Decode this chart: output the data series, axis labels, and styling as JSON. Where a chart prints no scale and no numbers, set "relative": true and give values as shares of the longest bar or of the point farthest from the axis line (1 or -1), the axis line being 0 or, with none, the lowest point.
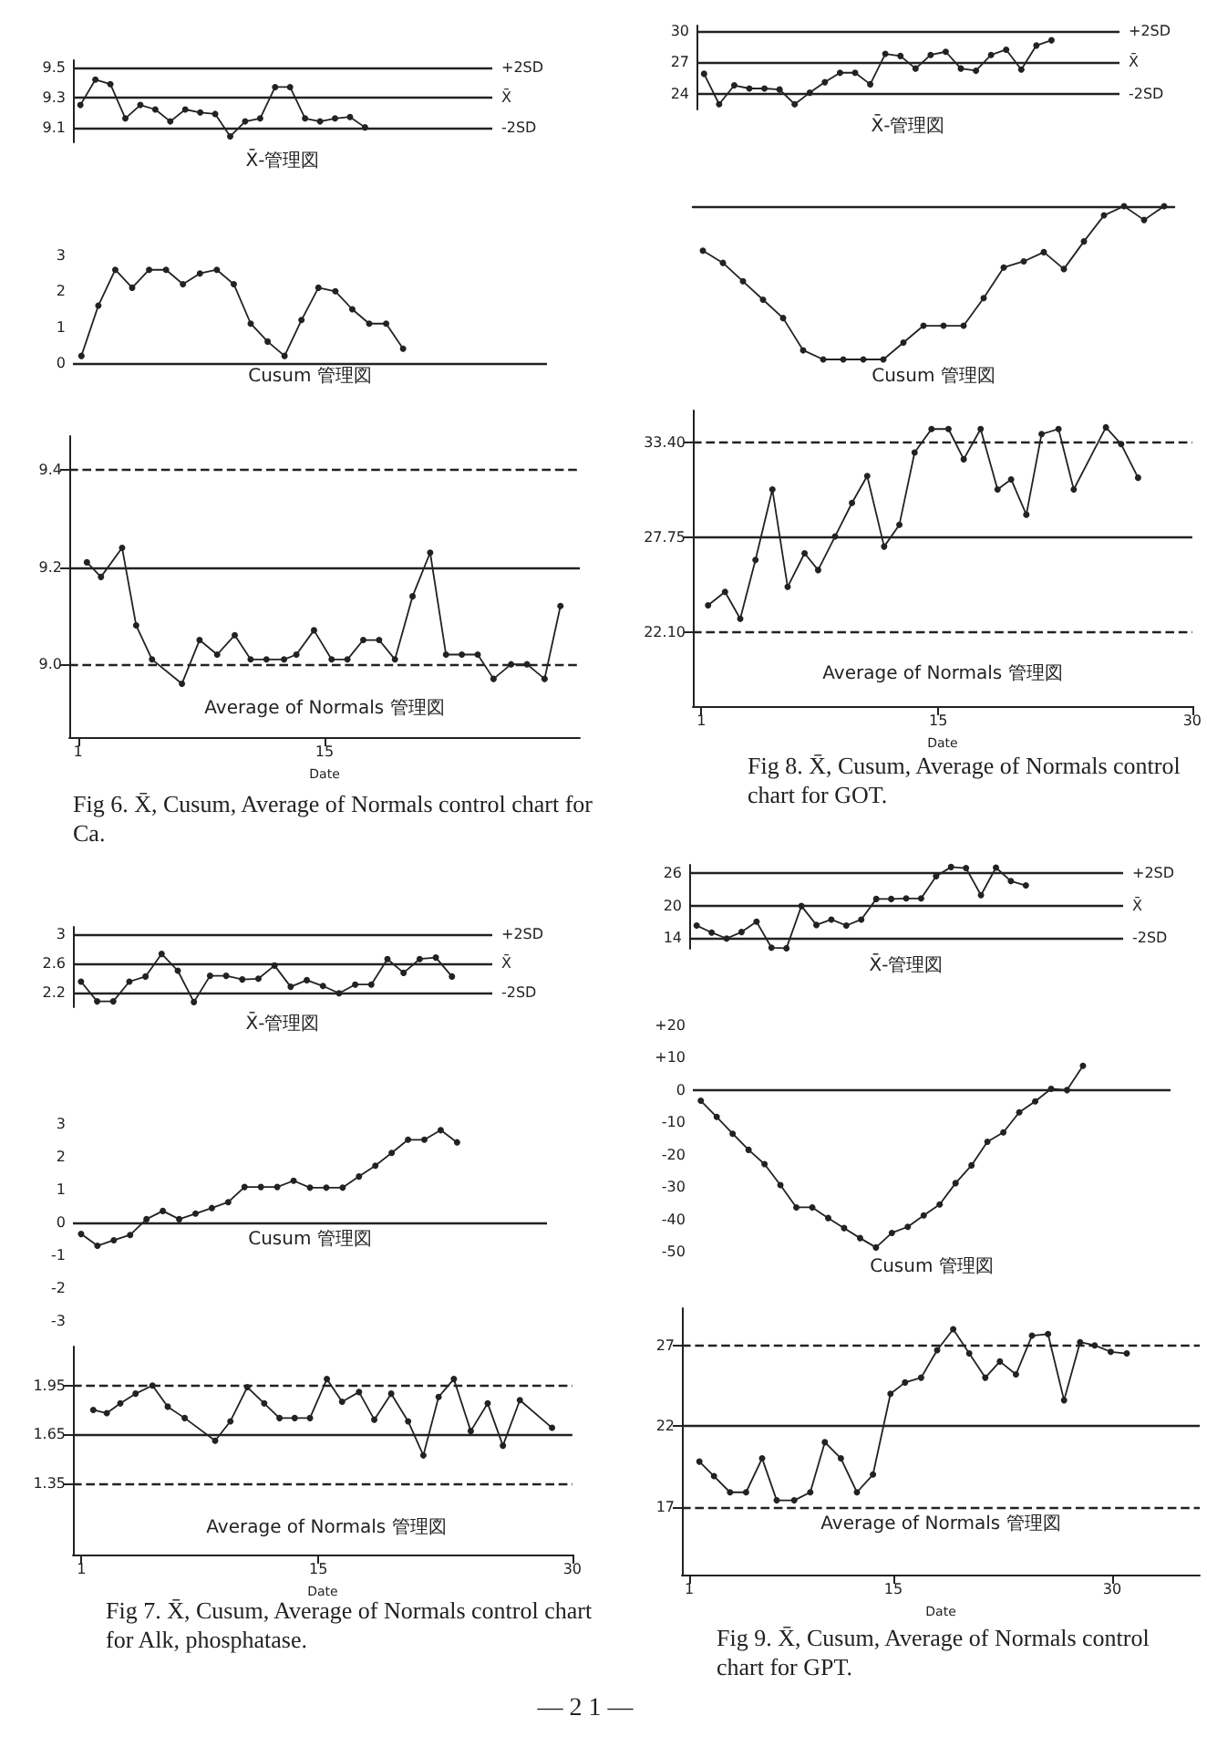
{
  "chart_data": [
    {
      "type": "line",
      "color": "#222222",
      "marker": "circle",
      "line_style": "solid",
      "tick_labels": "y",
      "grid": false,
      "categories": [
        null,
        null,
        null,
        null,
        null,
        null,
        null,
        null,
        null,
        null,
        null,
        null,
        null,
        null,
        null,
        null,
        null,
        null,
        null,
        null,
        null,
        null,
        null,
        null,
        null,
        null,
        null,
        null
      ],
      "values": [
        9.25,
        9.42,
        9.39,
        9.16,
        9.25,
        9.22,
        9.14,
        9.22,
        9.2,
        9.19,
        9.04,
        9.14,
        9.16,
        9.37,
        9.37,
        9.16,
        9.14,
        9.16,
        9.17,
        9.1,
        null,
        null,
        null,
        null,
        null,
        null,
        null,
        null
      ],
      "ylim": [
        9.0,
        9.55
      ],
      "yticks": [
        9.1,
        9.3,
        9.5
      ],
      "ref_lines": [
        {
          "axis": "y",
          "value": 9.5,
          "label": "+2SD"
        },
        {
          "axis": "y",
          "value": 9.3,
          "label": "X̄"
        },
        {
          "axis": "y",
          "value": 9.1,
          "label": "-2SD"
        }
      ],
      "annotations": [
        "X̄-管理図"
      ]
    },
    {
      "type": "line",
      "color": "#222222",
      "marker": "circle",
      "line_style": "solid",
      "tick_labels": "y",
      "grid": false,
      "categories": [
        null,
        null,
        null,
        null,
        null,
        null,
        null,
        null,
        null,
        null,
        null,
        null,
        null,
        null,
        null,
        null,
        null,
        null,
        null,
        null,
        null,
        null,
        null,
        null,
        null,
        null,
        null,
        null
      ],
      "values": [
        0.2,
        1.6,
        2.6,
        2.1,
        2.6,
        2.6,
        2.2,
        2.5,
        2.6,
        2.2,
        1.1,
        0.6,
        0.2,
        1.2,
        2.1,
        2.0,
        1.5,
        1.1,
        1.1,
        0.4,
        null,
        null,
        null,
        null,
        null,
        null,
        null,
        null
      ],
      "ylim": [
        0,
        3
      ],
      "yticks": [
        0,
        1,
        2,
        3
      ],
      "ref_lines": [
        {
          "axis": "y",
          "value": 0
        }
      ],
      "annotations": [
        "Cusum 管理図"
      ]
    },
    {
      "type": "line",
      "color": "#222222",
      "marker": "circle",
      "line_style": "solid",
      "grid": false,
      "xlabel": "Date",
      "x": [
        1.5,
        2.3,
        3.5,
        4.3,
        5.2,
        6.9,
        7.9,
        8.9,
        9.9,
        10.8,
        11.7,
        12.7,
        13.4,
        14.4,
        15.4,
        16.3,
        17.2,
        18.1,
        19.0,
        20.0,
        21.0,
        21.9,
        22.8,
        23.7,
        24.6,
        25.6,
        26.5,
        27.5,
        28.4
      ],
      "values": [
        9.21,
        9.18,
        9.24,
        9.08,
        9.01,
        8.96,
        9.05,
        9.02,
        9.06,
        9.01,
        9.01,
        9.01,
        9.02,
        9.07,
        9.01,
        9.01,
        9.05,
        9.05,
        9.01,
        9.14,
        9.23,
        9.02,
        9.02,
        9.02,
        8.97,
        9.0,
        9.0,
        8.97,
        9.12
      ],
      "xlim": [
        0.5,
        29.5
      ],
      "xticks": [
        1,
        15
      ],
      "ylim": [
        8.85,
        9.47
      ],
      "yticks": [
        {
          "value": 9,
          "label": "9.0"
        },
        9.2,
        9.4
      ],
      "ref_lines": [
        {
          "axis": "y",
          "value": 9.4,
          "line_style": "dashed"
        },
        {
          "axis": "y",
          "value": 9.2,
          "line_style": "solid"
        },
        {
          "axis": "y",
          "value": 9,
          "line_style": "dashed"
        }
      ],
      "annotations": [
        "Average of Normals 管理図",
        "Fig 6.  X̄, Cusum, Average of Normals control chart for Ca."
      ]
    },
    {
      "type": "line",
      "color": "#222222",
      "marker": "circle",
      "line_style": "solid",
      "tick_labels": "y",
      "grid": false,
      "categories": [
        null,
        null,
        null,
        null,
        null,
        null,
        null,
        null,
        null,
        null,
        null,
        null,
        null,
        null,
        null,
        null,
        null,
        null,
        null,
        null,
        null,
        null,
        null,
        null,
        null,
        null,
        null,
        null
      ],
      "values": [
        25.9,
        23.0,
        24.8,
        24.5,
        24.5,
        24.4,
        23.0,
        24.1,
        25.1,
        26.0,
        26.0,
        24.9,
        27.8,
        27.6,
        26.4,
        27.7,
        28.0,
        26.4,
        26.2,
        27.7,
        28.2,
        26.3,
        28.6,
        29.1,
        null,
        null,
        null,
        null
      ],
      "ylim": [
        22.5,
        30.5
      ],
      "yticks": [
        24,
        27,
        30
      ],
      "ref_lines": [
        {
          "axis": "y",
          "value": 30,
          "label": "+2SD"
        },
        {
          "axis": "y",
          "value": 27,
          "label": "X̄"
        },
        {
          "axis": "y",
          "value": 24,
          "label": "-2SD"
        }
      ],
      "annotations": [
        "X̄-管理図"
      ]
    },
    {
      "type": "line",
      "color": "#222222",
      "marker": "circle",
      "line_style": "solid",
      "relative": true,
      "tick_labels": false,
      "grid": false,
      "categories": [
        null,
        null,
        null,
        null,
        null,
        null,
        null,
        null,
        null,
        null,
        null,
        null,
        null,
        null,
        null,
        null,
        null,
        null,
        null,
        null,
        null,
        null,
        null,
        null
      ],
      "values": [
        -0.29,
        -0.37,
        -0.49,
        -0.61,
        -0.73,
        -0.94,
        -1,
        -1,
        -1,
        -1,
        -0.89,
        -0.78,
        -0.78,
        -0.78,
        -0.6,
        -0.4,
        -0.36,
        -0.3,
        -0.41,
        -0.23,
        -0.06,
        0,
        -0.09,
        0
      ],
      "annotations": [
        "Cusum 管理図"
      ]
    },
    {
      "type": "line",
      "color": "#222222",
      "marker": "circle",
      "line_style": "solid",
      "grid": false,
      "xlabel": "Date",
      "x": [
        1.4,
        2.4,
        3.3,
        4.2,
        5.2,
        6.1,
        7.1,
        7.9,
        8.9,
        9.9,
        10.8,
        11.8,
        12.7,
        13.6,
        14.6,
        15.6,
        16.5,
        17.5,
        18.5,
        19.3,
        20.2,
        21.1,
        22.1,
        23.0,
        24.9,
        25.8,
        26.8
      ],
      "values": [
        23.7,
        24.5,
        22.9,
        26.4,
        30.6,
        24.8,
        26.8,
        25.8,
        27.8,
        29.8,
        31.4,
        27.2,
        28.5,
        32.8,
        34.2,
        34.2,
        32.4,
        34.2,
        30.6,
        31.2,
        29.1,
        33.9,
        34.2,
        30.6,
        34.3,
        33.3,
        31.3
      ],
      "xlim": [
        0.5,
        30
      ],
      "xticks": [
        1,
        15,
        30
      ],
      "ylim": [
        17.7,
        35.3
      ],
      "yticks": [
        {
          "value": 22.1,
          "label": "22.10"
        },
        27.75,
        {
          "value": 33.4,
          "label": "33.40"
        }
      ],
      "ref_lines": [
        {
          "axis": "y",
          "value": 33.4,
          "line_style": "dashed"
        },
        {
          "axis": "y",
          "value": 27.75,
          "line_style": "solid"
        },
        {
          "axis": "y",
          "value": 22.1,
          "line_style": "dashed"
        }
      ],
      "annotations": [
        "Average of Normals 管理図",
        "Fig 8.  X̄, Cusum, Average of Normals control chart for GOT."
      ]
    },
    {
      "type": "line",
      "color": "#222222",
      "marker": "circle",
      "line_style": "solid",
      "tick_labels": "y",
      "grid": false,
      "categories": [
        null,
        null,
        null,
        null,
        null,
        null,
        null,
        null,
        null,
        null,
        null,
        null,
        null,
        null,
        null,
        null,
        null,
        null,
        null,
        null,
        null,
        null,
        null,
        null,
        null,
        null
      ],
      "values": [
        2.35,
        2.08,
        2.08,
        2.35,
        2.42,
        2.73,
        2.5,
        2.07,
        2.43,
        2.43,
        2.38,
        2.39,
        2.57,
        2.28,
        2.37,
        2.29,
        2.19,
        2.31,
        2.31,
        2.66,
        2.47,
        2.66,
        2.68,
        2.42,
        null,
        null
      ],
      "ylim": [
        2.0,
        3.1
      ],
      "yticks": [
        2.2,
        2.6,
        3
      ],
      "ref_lines": [
        {
          "axis": "y",
          "value": 3,
          "label": "+2SD"
        },
        {
          "axis": "y",
          "value": 2.6,
          "label": "X̄"
        },
        {
          "axis": "y",
          "value": 2.2,
          "label": "-2SD"
        }
      ],
      "annotations": [
        "X̄-管理図"
      ]
    },
    {
      "type": "line",
      "color": "#222222",
      "marker": "circle",
      "line_style": "solid",
      "tick_labels": "y",
      "grid": false,
      "categories": [
        null,
        null,
        null,
        null,
        null,
        null,
        null,
        null,
        null,
        null,
        null,
        null,
        null,
        null,
        null,
        null,
        null,
        null,
        null,
        null,
        null,
        null,
        null,
        null,
        null,
        null,
        null,
        null,
        null
      ],
      "values": [
        -0.35,
        -0.71,
        -0.54,
        -0.38,
        0.1,
        0.35,
        0.1,
        0.27,
        0.44,
        0.62,
        1.08,
        1.08,
        1.08,
        1.27,
        1.06,
        1.06,
        1.06,
        1.4,
        1.73,
        2.12,
        2.52,
        2.52,
        2.81,
        2.44,
        null,
        null,
        null,
        null,
        null
      ],
      "ylim": [
        -3,
        3
      ],
      "yticks": [
        3,
        2,
        1,
        0,
        -1,
        -2,
        -3
      ],
      "ref_lines": [
        {
          "axis": "y",
          "value": 0
        }
      ],
      "annotations": [
        "Cusum 管理図"
      ]
    },
    {
      "type": "line",
      "color": "#222222",
      "marker": "circle",
      "line_style": "solid",
      "grid": false,
      "xlabel": "Date",
      "x": [
        1.7,
        2.5,
        3.3,
        4.2,
        5.2,
        6.1,
        7.1,
        8.9,
        9.8,
        10.8,
        11.8,
        12.7,
        13.6,
        14.5,
        15.5,
        16.4,
        17.4,
        18.3,
        19.3,
        20.3,
        21.2,
        22.1,
        23.0,
        24.0,
        25.0,
        25.9,
        26.9,
        28.8
      ],
      "values": [
        1.8,
        1.78,
        1.84,
        1.9,
        1.95,
        1.82,
        1.75,
        1.61,
        1.73,
        1.94,
        1.84,
        1.75,
        1.75,
        1.75,
        1.99,
        1.85,
        1.91,
        1.74,
        1.9,
        1.73,
        1.52,
        1.88,
        1.99,
        1.67,
        1.84,
        1.58,
        1.86,
        1.69
      ],
      "xlim": [
        0.5,
        30
      ],
      "xticks": [
        1,
        15,
        30
      ],
      "ylim": [
        0.91,
        2.19
      ],
      "yticks": [
        1.35,
        1.65,
        1.95
      ],
      "ref_lines": [
        {
          "axis": "y",
          "value": 1.95,
          "line_style": "dashed"
        },
        {
          "axis": "y",
          "value": 1.65,
          "line_style": "solid"
        },
        {
          "axis": "y",
          "value": 1.35,
          "line_style": "dashed"
        }
      ],
      "annotations": [
        "Average of Normals 管理図",
        "Fig 7.  X̄, Cusum, Average of Normals control chart for Alk, phosphatase.",
        "— 2 1 —"
      ]
    },
    {
      "type": "line",
      "color": "#222222",
      "marker": "circle",
      "line_style": "solid",
      "tick_labels": "y",
      "grid": false,
      "categories": [
        null,
        null,
        null,
        null,
        null,
        null,
        null,
        null,
        null,
        null,
        null,
        null,
        null,
        null,
        null,
        null,
        null,
        null,
        null,
        null,
        null,
        null,
        null,
        null,
        null,
        null,
        null,
        null,
        null
      ],
      "values": [
        16.3,
        15.0,
        13.9,
        15.1,
        17.0,
        12.2,
        12.1,
        19.9,
        16.4,
        17.4,
        16.3,
        17.4,
        21.2,
        21.2,
        21.3,
        21.3,
        25.4,
        27.1,
        26.9,
        21.9,
        27.0,
        24.5,
        23.7,
        null,
        null,
        null,
        null,
        null,
        null
      ],
      "ylim": [
        12,
        27.5
      ],
      "yticks": [
        14,
        20,
        26
      ],
      "ref_lines": [
        {
          "axis": "y",
          "value": 26,
          "label": "+2SD"
        },
        {
          "axis": "y",
          "value": 20,
          "label": "X̄"
        },
        {
          "axis": "y",
          "value": 14,
          "label": "-2SD"
        }
      ],
      "annotations": [
        "X̄-管理図"
      ]
    },
    {
      "type": "line",
      "color": "#222222",
      "marker": "circle",
      "line_style": "solid",
      "tick_labels": "y",
      "grid": false,
      "categories": [
        null,
        null,
        null,
        null,
        null,
        null,
        null,
        null,
        null,
        null,
        null,
        null,
        null,
        null,
        null,
        null,
        null,
        null,
        null,
        null,
        null,
        null,
        null,
        null,
        null,
        null,
        null,
        null,
        null,
        null
      ],
      "values": [
        -3.3,
        -8.3,
        -13.5,
        -18.5,
        -22.9,
        -29.4,
        -36.3,
        -36.3,
        -39.6,
        -42.7,
        -45.8,
        -48.7,
        -44.2,
        -42.3,
        -38.8,
        -35.4,
        -28.8,
        -23.3,
        -16.0,
        -13.1,
        -6.9,
        -3.5,
        0.4,
        0,
        7.5,
        null,
        null,
        null,
        null,
        null
      ],
      "ylim": [
        -50,
        20
      ],
      "yticks": [
        {
          "value": 20,
          "label": "+20"
        },
        {
          "value": 10,
          "label": "+10"
        },
        0,
        -10,
        -20,
        -30,
        -40,
        -50
      ],
      "ref_lines": [
        {
          "axis": "y",
          "value": 0
        }
      ],
      "annotations": [
        "Cusum 管理図"
      ]
    },
    {
      "type": "line",
      "color": "#222222",
      "marker": "circle",
      "line_style": "solid",
      "grid": false,
      "xlabel": "Date",
      "x": [
        1.7,
        2.7,
        3.8,
        4.9,
        6.0,
        7.0,
        8.2,
        9.3,
        10.3,
        11.4,
        12.5,
        13.6,
        14.8,
        15.8,
        16.9,
        18.0,
        19.1,
        20.2,
        21.3,
        22.3,
        23.4,
        24.5,
        25.6,
        26.7,
        27.8,
        28.8,
        29.9,
        31.0
      ],
      "values": [
        19.8,
        18.9,
        17.9,
        17.9,
        20.0,
        17.4,
        17.4,
        17.9,
        21.0,
        20.0,
        17.9,
        19.0,
        24.0,
        24.7,
        25.0,
        26.7,
        28.0,
        26.5,
        25.0,
        26.0,
        25.2,
        27.6,
        27.7,
        23.6,
        27.2,
        27.0,
        26.6,
        26.5
      ],
      "xlim": [
        0.5,
        36
      ],
      "xticks": [
        1,
        15,
        30
      ],
      "ylim": [
        12.8,
        29.3
      ],
      "yticks": [
        17,
        22,
        27
      ],
      "ref_lines": [
        {
          "axis": "y",
          "value": 27,
          "line_style": "dashed"
        },
        {
          "axis": "y",
          "value": 22,
          "line_style": "solid"
        },
        {
          "axis": "y",
          "value": 17,
          "line_style": "dashed"
        }
      ],
      "annotations": [
        "Average of Normals 管理図",
        "Fig 9.  X̄, Cusum, Average of Normals control chart for GPT."
      ]
    }
  ]
}
